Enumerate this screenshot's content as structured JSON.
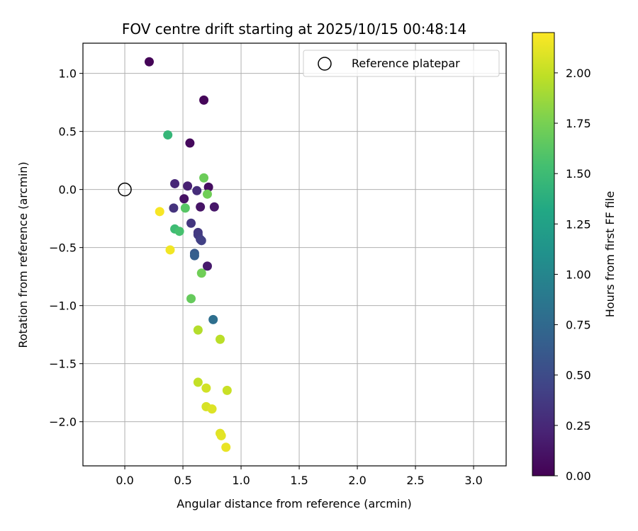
{
  "chart_data": {
    "type": "scatter",
    "title": "FOV centre drift starting at 2025/10/15 00:48:14",
    "xlabel": "Angular distance from reference (arcmin)",
    "ylabel": "Rotation from reference (arcmin)",
    "xlim": [
      -0.36,
      3.28
    ],
    "ylim": [
      -2.38,
      1.26
    ],
    "xticks": [
      0.0,
      0.5,
      1.0,
      1.5,
      2.0,
      2.5,
      3.0
    ],
    "xtick_labels": [
      "0.0",
      "0.5",
      "1.0",
      "1.5",
      "2.0",
      "2.5",
      "3.0"
    ],
    "yticks": [
      1.0,
      0.5,
      0.0,
      -0.5,
      -1.0,
      -1.5,
      -2.0
    ],
    "ytick_labels": [
      "1.0",
      "0.5",
      "0.0",
      "−0.5",
      "−1.0",
      "−1.5",
      "−2.0"
    ],
    "grid": true,
    "legend": {
      "position": "top-right",
      "entries": [
        "Reference platepar"
      ]
    },
    "reference_point": {
      "x": 0.0,
      "y": 0.0,
      "label": "Reference platepar"
    },
    "colorbar": {
      "label": "Hours from first FF file",
      "range": [
        0.0,
        2.2
      ],
      "ticks": [
        0.0,
        0.25,
        0.5,
        0.75,
        1.0,
        1.25,
        1.5,
        1.75,
        2.0
      ],
      "tick_labels": [
        "0.00",
        "0.25",
        "0.50",
        "0.75",
        "1.00",
        "1.25",
        "1.50",
        "1.75",
        "2.00"
      ],
      "colormap": "viridis"
    },
    "points": [
      {
        "x": 0.21,
        "y": 1.1,
        "hours": 0.02
      },
      {
        "x": 0.68,
        "y": 0.77,
        "hours": 0.03
      },
      {
        "x": 0.56,
        "y": 0.4,
        "hours": 0.05
      },
      {
        "x": 0.72,
        "y": 0.02,
        "hours": 0.08
      },
      {
        "x": 0.51,
        "y": -0.08,
        "hours": 0.1
      },
      {
        "x": 0.65,
        "y": -0.15,
        "hours": 0.12
      },
      {
        "x": 0.77,
        "y": -0.15,
        "hours": 0.14
      },
      {
        "x": 0.71,
        "y": -0.66,
        "hours": 0.16
      },
      {
        "x": 0.54,
        "y": 0.03,
        "hours": 0.2
      },
      {
        "x": 0.43,
        "y": 0.05,
        "hours": 0.24
      },
      {
        "x": 0.62,
        "y": -0.01,
        "hours": 0.28
      },
      {
        "x": 0.42,
        "y": -0.16,
        "hours": 0.32
      },
      {
        "x": 0.57,
        "y": -0.29,
        "hours": 0.35
      },
      {
        "x": 0.63,
        "y": -0.37,
        "hours": 0.36
      },
      {
        "x": 0.63,
        "y": -0.39,
        "hours": 0.38
      },
      {
        "x": 0.65,
        "y": -0.43,
        "hours": 0.4
      },
      {
        "x": 0.66,
        "y": -0.44,
        "hours": 0.42
      },
      {
        "x": 0.6,
        "y": -0.55,
        "hours": 0.62
      },
      {
        "x": 0.6,
        "y": -0.57,
        "hours": 0.66
      },
      {
        "x": 0.76,
        "y": -1.12,
        "hours": 0.8
      },
      {
        "x": 0.37,
        "y": 0.47,
        "hours": 1.45
      },
      {
        "x": 0.52,
        "y": -0.16,
        "hours": 1.62
      },
      {
        "x": 0.43,
        "y": -0.34,
        "hours": 1.5
      },
      {
        "x": 0.47,
        "y": -0.36,
        "hours": 1.55
      },
      {
        "x": 0.68,
        "y": 0.1,
        "hours": 1.7
      },
      {
        "x": 0.71,
        "y": -0.04,
        "hours": 1.72
      },
      {
        "x": 0.66,
        "y": -0.72,
        "hours": 1.72
      },
      {
        "x": 0.57,
        "y": -0.94,
        "hours": 1.68
      },
      {
        "x": 0.3,
        "y": -0.19,
        "hours": 2.18
      },
      {
        "x": 0.39,
        "y": -0.52,
        "hours": 2.16
      },
      {
        "x": 0.63,
        "y": -1.21,
        "hours": 1.95
      },
      {
        "x": 0.82,
        "y": -1.29,
        "hours": 1.97
      },
      {
        "x": 0.63,
        "y": -1.66,
        "hours": 2.0
      },
      {
        "x": 0.7,
        "y": -1.71,
        "hours": 2.05
      },
      {
        "x": 0.88,
        "y": -1.73,
        "hours": 2.02
      },
      {
        "x": 0.7,
        "y": -1.87,
        "hours": 2.07
      },
      {
        "x": 0.75,
        "y": -1.89,
        "hours": 2.09
      },
      {
        "x": 0.82,
        "y": -2.1,
        "hours": 2.1
      },
      {
        "x": 0.83,
        "y": -2.12,
        "hours": 2.11
      },
      {
        "x": 0.87,
        "y": -2.22,
        "hours": 2.13
      }
    ]
  }
}
